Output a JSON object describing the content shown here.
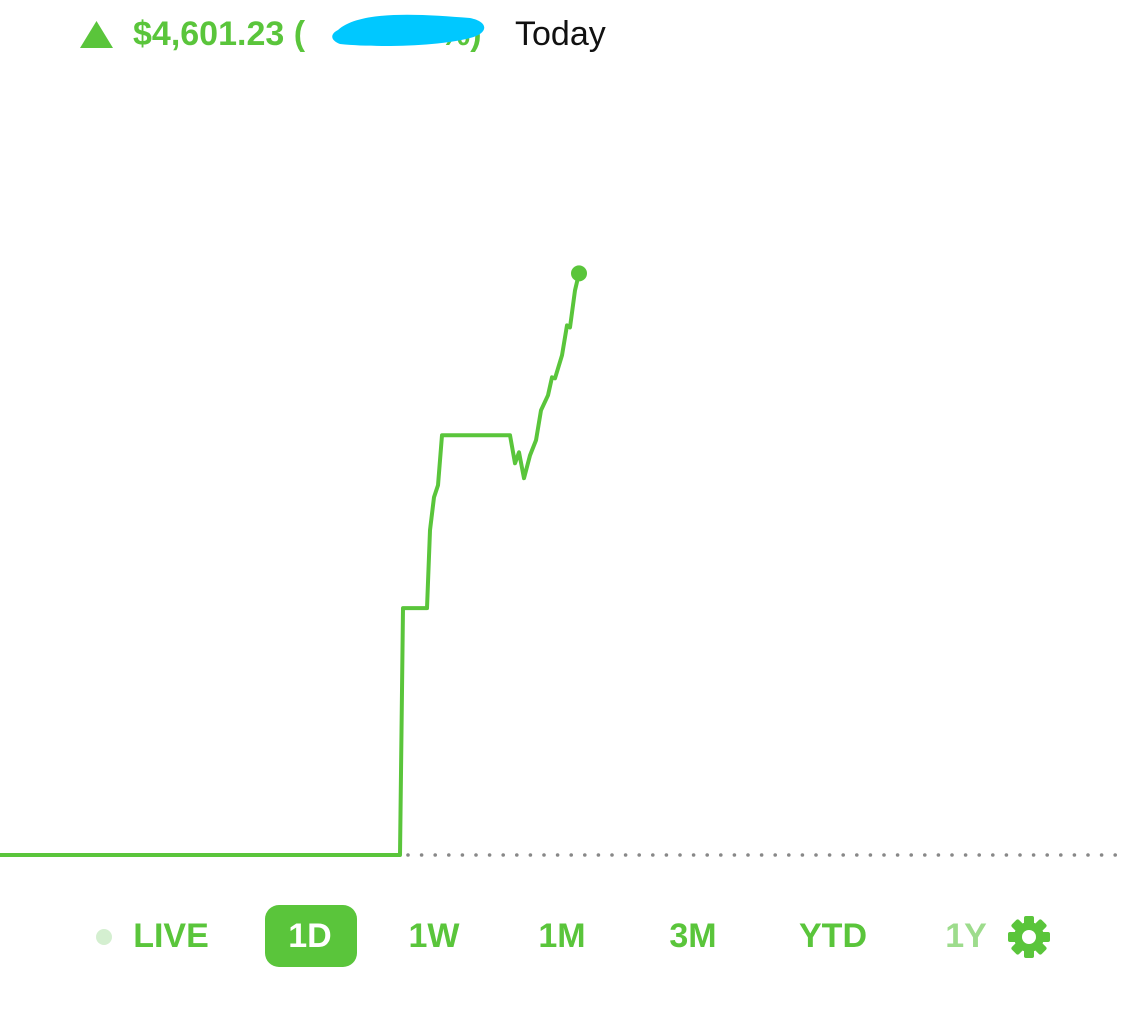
{
  "header": {
    "change": "$4,601.23 (",
    "change_suffix": "%)",
    "period": "Today"
  },
  "chart_data": {
    "type": "line",
    "x": [
      0,
      400,
      403,
      427,
      430,
      434,
      438,
      442,
      510,
      515,
      519,
      524,
      530,
      536,
      541,
      548,
      552,
      555,
      562,
      567,
      570,
      575,
      579
    ],
    "values": [
      0,
      0,
      1953,
      1953,
      2569,
      2830,
      2925,
      3321,
      3321,
      3099,
      3186,
      2981,
      3162,
      3281,
      3518,
      3637,
      3779,
      3771,
      3953,
      4190,
      4174,
      4467,
      4601.23
    ],
    "xlim": [
      0,
      1125
    ],
    "ylim": [
      0,
      5000
    ],
    "color": "#5ac53b"
  },
  "tabs": [
    "LIVE",
    "1D",
    "1W",
    "1M",
    "3M",
    "YTD",
    "1Y"
  ]
}
